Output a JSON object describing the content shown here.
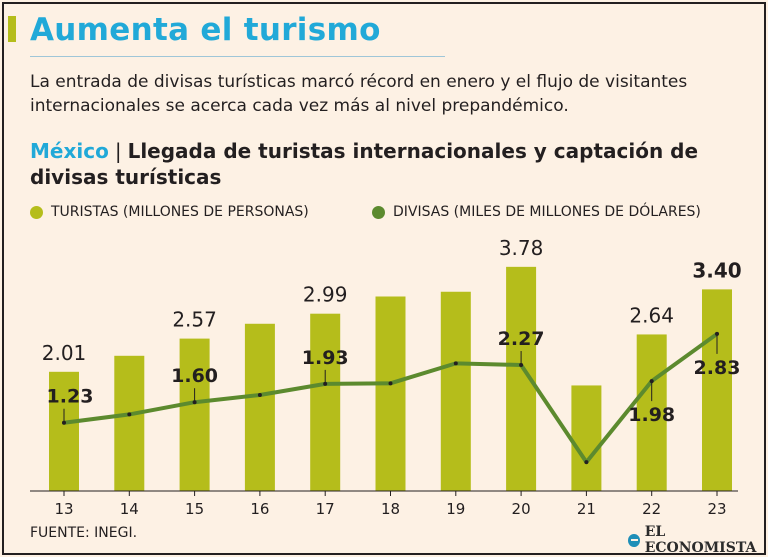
{
  "header": {
    "title": "Aumenta el turismo",
    "subtitle": "La entrada de divisas turísticas marcó récord en enero y el flujo de visitantes internacionales se acerca cada vez más al nivel prepandémico.",
    "country": "México",
    "separator": "|",
    "chart_title": "Llegada de turistas internacionales y captación de divisas turísticas"
  },
  "legend": {
    "turistas": "TURISTAS (MILLONES DE PERSONAS)",
    "divisas": "DIVISAS (MILES DE MILLONES DE DÓLARES)"
  },
  "footer": {
    "source": "FUENTE: INEGI.",
    "brand": "EL ECONOMISTA"
  },
  "colors": {
    "title": "#21a9d8",
    "bar": "#b5bd1b",
    "line": "#5c8a2e",
    "accent": "#b5bd1b"
  },
  "chart_data": {
    "type": "bar+line",
    "categories": [
      "13",
      "14",
      "15",
      "16",
      "17",
      "18",
      "19",
      "20",
      "21",
      "22",
      "23"
    ],
    "series": [
      {
        "name": "TURISTAS (MILLONES DE PERSONAS)",
        "type": "bar",
        "values": [
          2.01,
          2.28,
          2.57,
          2.82,
          2.99,
          3.28,
          3.36,
          3.78,
          1.78,
          2.64,
          3.4
        ],
        "labels": [
          "2.01",
          "",
          "2.57",
          "",
          "2.99",
          "",
          "",
          "3.78",
          "",
          "2.64",
          "3.40"
        ]
      },
      {
        "name": "DIVISAS (MILES DE MILLONES DE DÓLARES)",
        "type": "line",
        "values": [
          1.23,
          1.38,
          1.6,
          1.73,
          1.93,
          1.94,
          2.3,
          2.27,
          0.52,
          1.98,
          2.83
        ],
        "labels": [
          "1.23",
          "",
          "1.60",
          "",
          "1.93",
          "",
          "",
          "2.27",
          "",
          "1.98",
          "2.83"
        ]
      }
    ]
  }
}
